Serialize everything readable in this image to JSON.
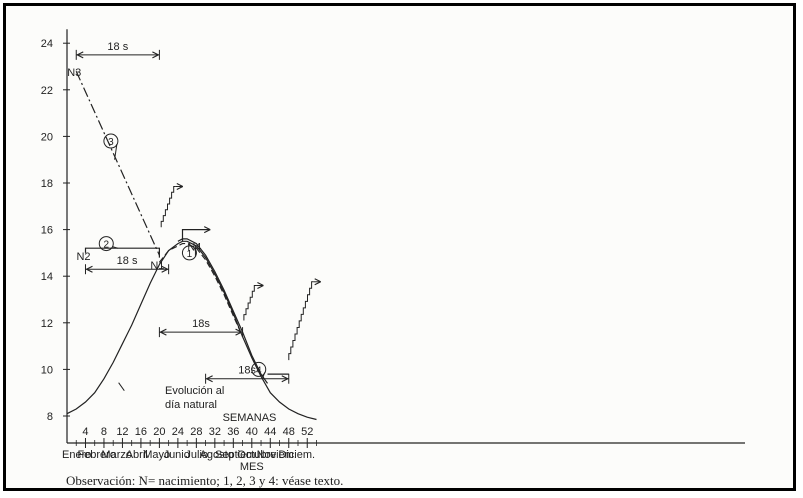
{
  "chart_data": {
    "type": "line",
    "ylim": [
      7.5,
      25
    ],
    "xlim": [
      0,
      56
    ],
    "y_ticks": [
      8,
      10,
      12,
      14,
      16,
      18,
      20,
      22,
      24
    ],
    "week_ticks": [
      4,
      8,
      12,
      16,
      20,
      24,
      28,
      32,
      36,
      40,
      44,
      48,
      52
    ],
    "months": [
      "Enero",
      "Febrero",
      "Marzo",
      "Abril",
      "Mayo",
      "Junio",
      "Julio",
      "Agosto",
      "Septiem.",
      "Octubre",
      "Noviem.",
      "Diciem."
    ],
    "xlabel_weeks": "SEMANAS",
    "xlabel_months": "MES",
    "natural_day_label": [
      "Evolución al",
      "día natural"
    ],
    "daylength_curve": [
      [
        0,
        8.1
      ],
      [
        2,
        8.3
      ],
      [
        4,
        8.6
      ],
      [
        6,
        9.0
      ],
      [
        8,
        9.6
      ],
      [
        10,
        10.3
      ],
      [
        12,
        11.1
      ],
      [
        14,
        11.9
      ],
      [
        16,
        12.8
      ],
      [
        18,
        13.7
      ],
      [
        20,
        14.5
      ],
      [
        22,
        15.1
      ],
      [
        24,
        15.4
      ],
      [
        25,
        15.5
      ],
      [
        26,
        15.5
      ],
      [
        28,
        15.3
      ],
      [
        30,
        14.8
      ],
      [
        32,
        14.1
      ],
      [
        34,
        13.3
      ],
      [
        36,
        12.4
      ],
      [
        38,
        11.4
      ],
      [
        40,
        10.5
      ],
      [
        42,
        9.7
      ],
      [
        44,
        9.0
      ],
      [
        46,
        8.6
      ],
      [
        48,
        8.3
      ],
      [
        50,
        8.1
      ],
      [
        52,
        7.95
      ],
      [
        54,
        7.85
      ]
    ],
    "line_1_dashed": [
      [
        20,
        14.6
      ],
      [
        22,
        15.1
      ],
      [
        24,
        15.3
      ],
      [
        25,
        15.4
      ],
      [
        26,
        15.4
      ],
      [
        28,
        15.2
      ],
      [
        30,
        14.7
      ],
      [
        32,
        14.0
      ],
      [
        34,
        13.2
      ],
      [
        36,
        12.3
      ],
      [
        38,
        11.4
      ]
    ],
    "line_1_upper": [
      [
        24,
        15.5
      ],
      [
        25,
        15.6
      ],
      [
        26,
        15.6
      ],
      [
        28,
        15.4
      ],
      [
        30,
        14.9
      ],
      [
        32,
        14.2
      ],
      [
        34,
        13.4
      ],
      [
        36,
        12.5
      ],
      [
        38,
        11.6
      ],
      [
        40,
        10.6
      ],
      [
        42,
        9.8
      ],
      [
        43.4,
        9.4
      ]
    ],
    "line_2": [
      [
        4,
        15.0
      ],
      [
        4,
        15.2
      ],
      [
        20,
        15.2
      ],
      [
        20,
        14.8
      ]
    ],
    "line_3": [
      [
        2,
        22.8
      ],
      [
        20,
        14.9
      ]
    ],
    "line_4": [
      [
        43.4,
        9.8
      ],
      [
        48,
        9.8
      ]
    ],
    "line_n4_platform": [
      [
        25,
        15.5
      ],
      [
        25,
        16.0
      ],
      [
        31,
        16.0
      ]
    ],
    "stairs": [
      {
        "x0": 20.4,
        "y0": 16.1,
        "steps": 7,
        "dx": 0.45,
        "dy": 0.25
      },
      {
        "x0": 38.3,
        "y0": 12.1,
        "steps": 6,
        "dx": 0.45,
        "dy": 0.25
      },
      {
        "x0": 48.0,
        "y0": 10.4,
        "steps": 12,
        "dx": 0.45,
        "dy": 0.28
      }
    ],
    "spans": [
      {
        "x1": 2,
        "x2": 20,
        "y": 23.5,
        "label": "18 s"
      },
      {
        "x1": 4,
        "x2": 22,
        "y": 14.3,
        "label": "18 s"
      },
      {
        "x1": 20,
        "x2": 38,
        "y": 11.6,
        "label": "18s"
      },
      {
        "x1": 30,
        "x2": 48,
        "y": 9.6,
        "label": "18s"
      }
    ],
    "point_labels": [
      {
        "text": "N3",
        "x": 2,
        "y": 22.6
      },
      {
        "text": "N2",
        "x": 4,
        "y": 14.7
      },
      {
        "text": "N1",
        "x": 20,
        "y": 14.3
      },
      {
        "text": "N4",
        "x": 28,
        "y": 15.1
      }
    ],
    "circle_labels": [
      {
        "text": "1",
        "x": 26.5,
        "y": 15.0
      },
      {
        "text": "2",
        "x": 8.5,
        "y": 15.4
      },
      {
        "text": "3",
        "x": 9.5,
        "y": 19.8
      },
      {
        "text": "4",
        "x": 41.5,
        "y": 10.0
      }
    ]
  },
  "observation_text": "Observación: N= nacimiento; 1, 2, 3 y 4: véase texto.",
  "colors": {
    "ink": "#222222",
    "background": "#fcfcfa",
    "frame": "#000000"
  }
}
